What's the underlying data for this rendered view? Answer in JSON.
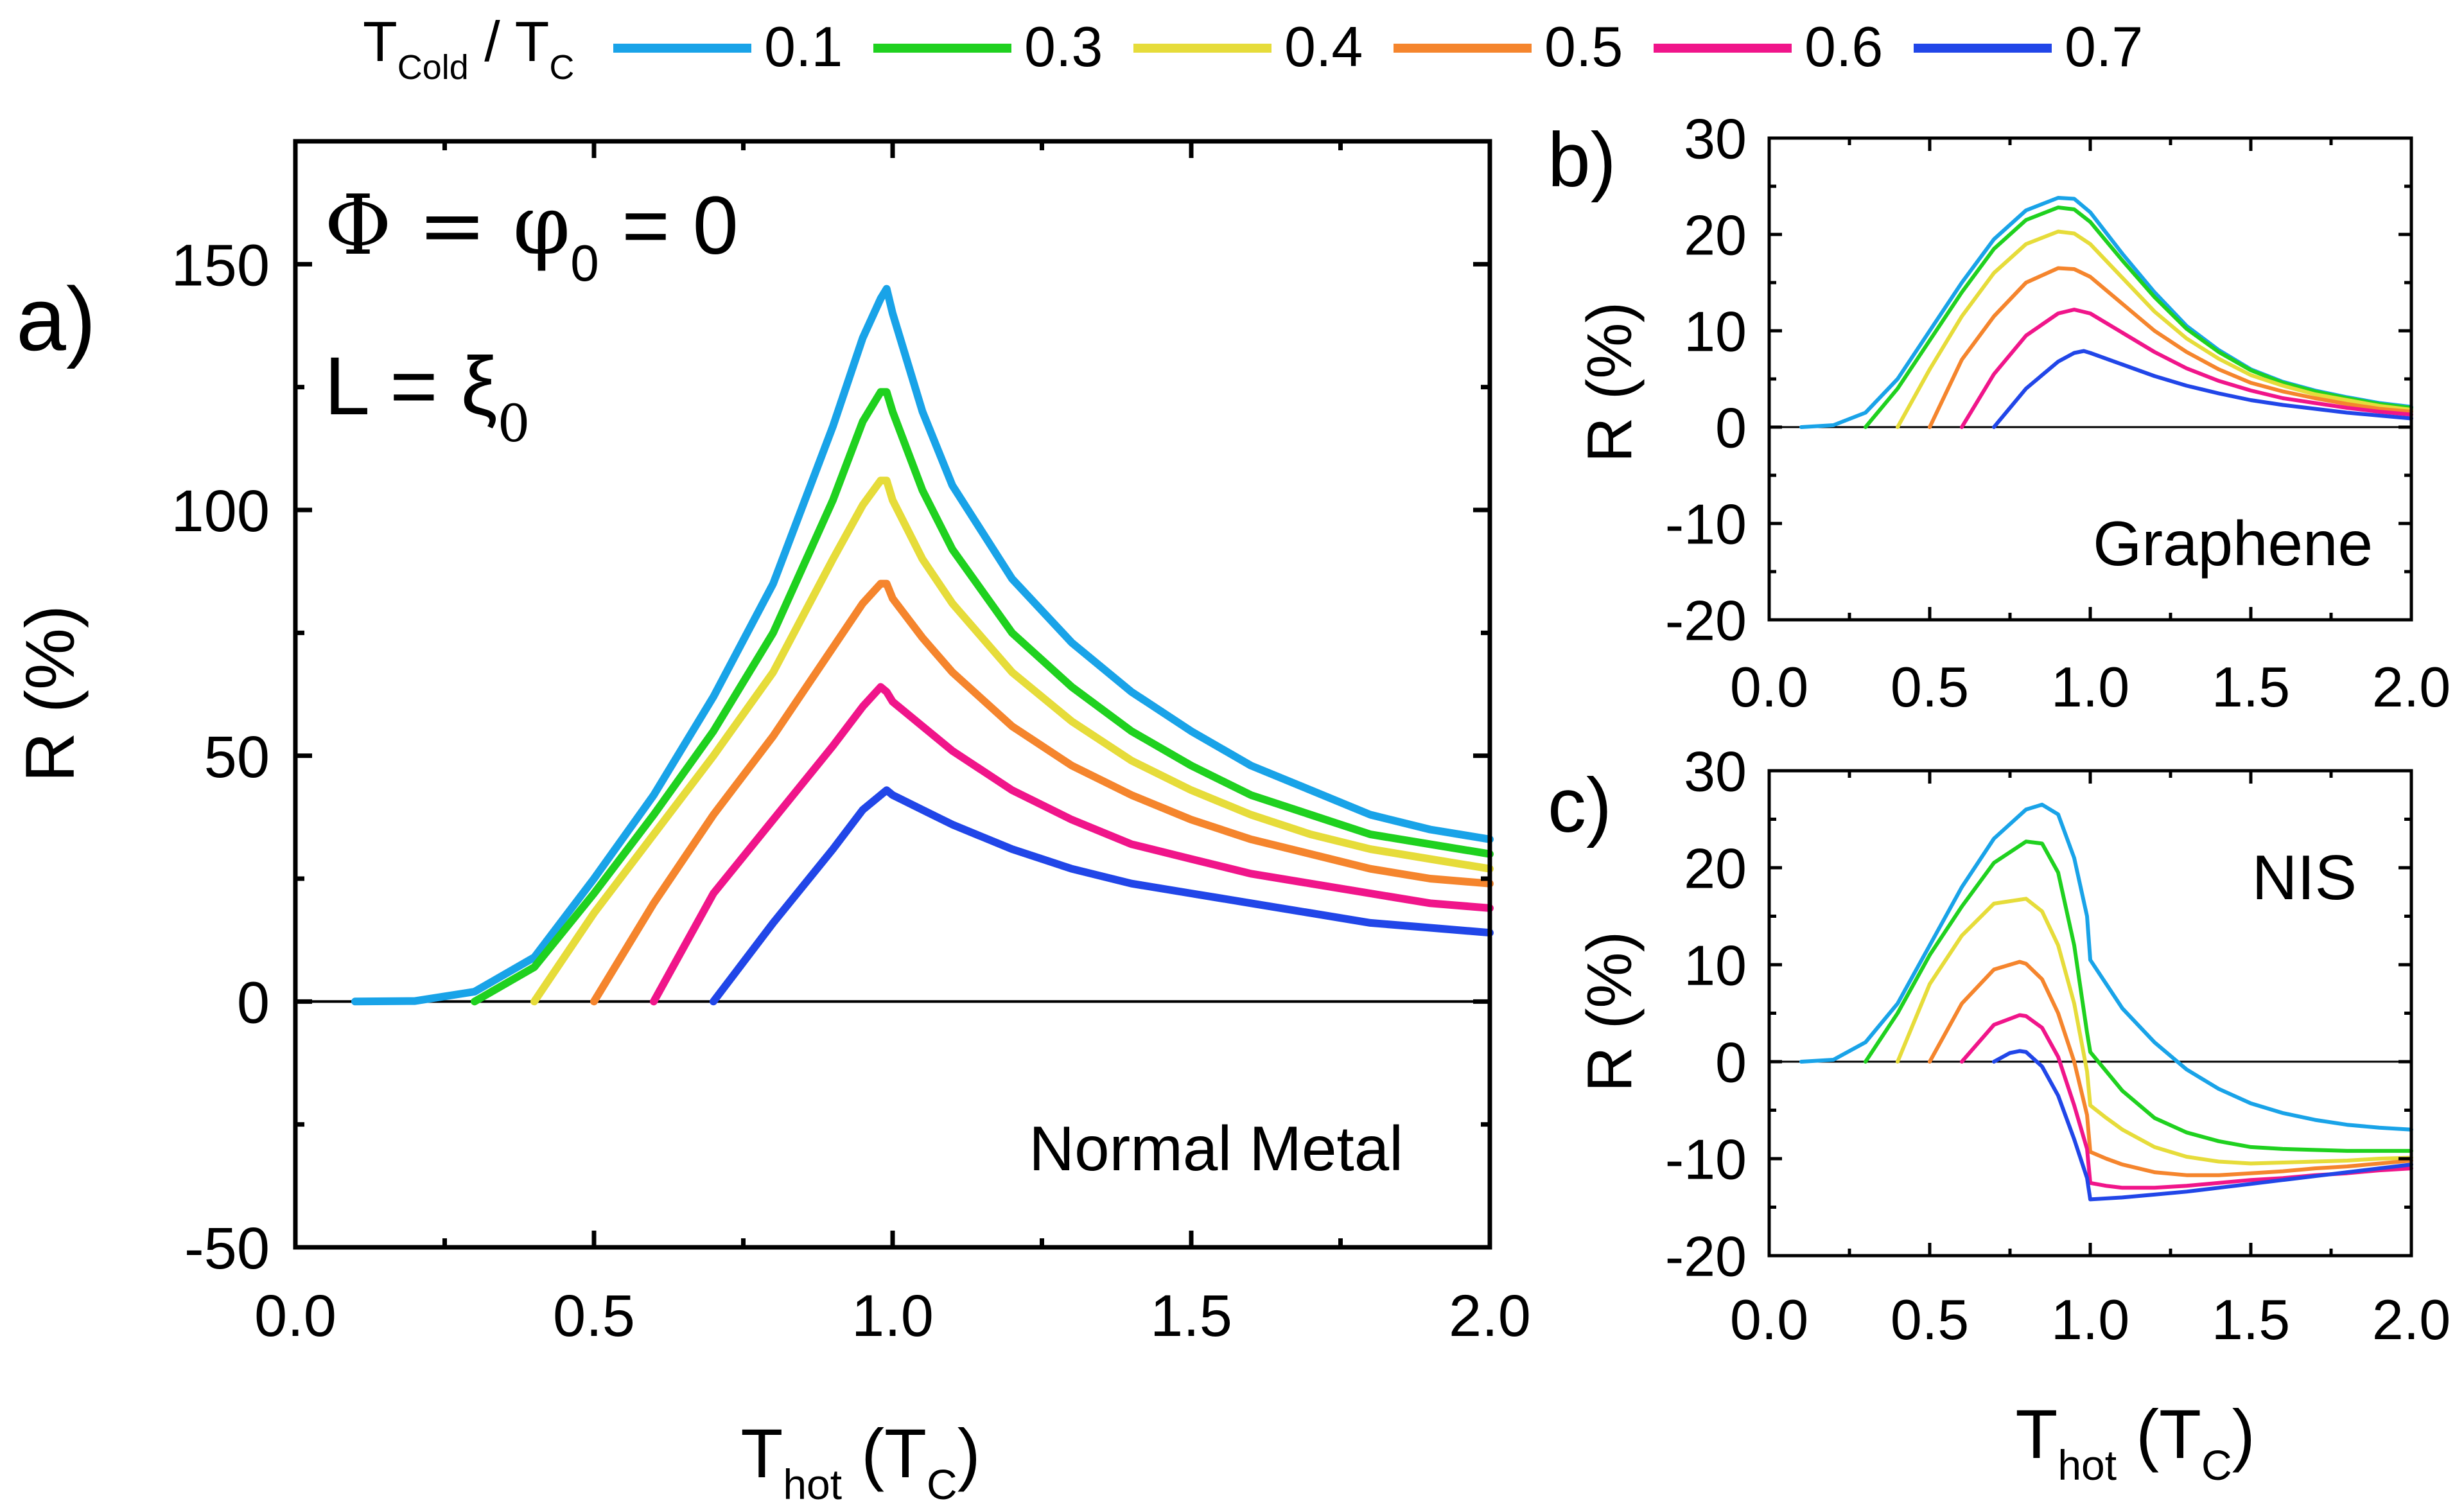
{
  "legend": {
    "title_main": "T",
    "title_sub": "Cold",
    "title_sep": " / T",
    "title_sub2": "C",
    "entries": [
      "0.1",
      "0.3",
      "0.4",
      "0.5",
      "0.6",
      "0.7"
    ],
    "colors": [
      "#19a3e8",
      "#1fd11f",
      "#e6dc3a",
      "#f5852d",
      "#f0158a",
      "#2146e8"
    ]
  },
  "chart_data": [
    {
      "id": "a",
      "type": "line",
      "panel_label": "a)",
      "title": "Normal Metal",
      "annotation_phi": {
        "lhs": "Φ = φ",
        "sub": "0",
        "rhs": " = 0"
      },
      "annotation_L": {
        "lhs": "L = ξ",
        "sub": "0"
      },
      "xlabel": {
        "main": "T",
        "sub": "hot",
        "rest": " (T",
        "sub2": "C",
        "end": ")"
      },
      "ylabel": "R (%)",
      "xlim": [
        0,
        2
      ],
      "ylim": [
        -50,
        175
      ],
      "xticks": [
        "0.0",
        "0.5",
        "1.0",
        "1.5",
        "2.0"
      ],
      "yticks": [
        "-50",
        "0",
        "50",
        "100",
        "150"
      ],
      "series": [
        {
          "name": "0.1",
          "x": [
            0.1,
            0.2,
            0.3,
            0.4,
            0.5,
            0.6,
            0.7,
            0.8,
            0.9,
            0.95,
            0.98,
            0.99,
            1.0,
            1.05,
            1.1,
            1.2,
            1.3,
            1.4,
            1.5,
            1.6,
            1.7,
            1.8,
            1.9,
            2.0
          ],
          "y": [
            0,
            0.1,
            2,
            9,
            25,
            42,
            62,
            85,
            117,
            135,
            143,
            145,
            140,
            120,
            105,
            86,
            73,
            63,
            55,
            48,
            43,
            38,
            35,
            33
          ]
        },
        {
          "name": "0.3",
          "x": [
            0.3,
            0.4,
            0.5,
            0.6,
            0.7,
            0.8,
            0.9,
            0.95,
            0.98,
            0.99,
            1.0,
            1.05,
            1.1,
            1.2,
            1.3,
            1.4,
            1.5,
            1.6,
            1.7,
            1.8,
            1.9,
            2.0
          ],
          "y": [
            0,
            7,
            22,
            38,
            55,
            75,
            102,
            118,
            124,
            124,
            120,
            104,
            92,
            75,
            64,
            55,
            48,
            42,
            38,
            34,
            32,
            30
          ]
        },
        {
          "name": "0.4",
          "x": [
            0.4,
            0.5,
            0.6,
            0.7,
            0.8,
            0.9,
            0.95,
            0.98,
            0.99,
            1.0,
            1.05,
            1.1,
            1.2,
            1.3,
            1.4,
            1.5,
            1.6,
            1.7,
            1.8,
            1.9,
            2.0
          ],
          "y": [
            0,
            18,
            34,
            50,
            67,
            90,
            101,
            106,
            106,
            102,
            90,
            81,
            67,
            57,
            49,
            43,
            38,
            34,
            31,
            29,
            27
          ]
        },
        {
          "name": "0.5",
          "x": [
            0.5,
            0.6,
            0.7,
            0.8,
            0.9,
            0.95,
            0.98,
            0.99,
            1.0,
            1.05,
            1.1,
            1.2,
            1.3,
            1.4,
            1.5,
            1.6,
            1.7,
            1.8,
            1.9,
            2.0
          ],
          "y": [
            0,
            20,
            38,
            54,
            72,
            81,
            85,
            85,
            82,
            74,
            67,
            56,
            48,
            42,
            37,
            33,
            30,
            27,
            25,
            24
          ]
        },
        {
          "name": "0.6",
          "x": [
            0.6,
            0.7,
            0.8,
            0.9,
            0.95,
            0.98,
            0.99,
            1.0,
            1.05,
            1.1,
            1.2,
            1.3,
            1.4,
            1.5,
            1.6,
            1.7,
            1.8,
            1.9,
            2.0
          ],
          "y": [
            0,
            22,
            37,
            52,
            60,
            64,
            63,
            61,
            56,
            51,
            43,
            37,
            32,
            29,
            26,
            24,
            22,
            20,
            19
          ]
        },
        {
          "name": "0.7",
          "x": [
            0.7,
            0.8,
            0.9,
            0.95,
            0.98,
            0.99,
            1.0,
            1.05,
            1.1,
            1.2,
            1.3,
            1.4,
            1.5,
            1.6,
            1.7,
            1.8,
            1.9,
            2.0
          ],
          "y": [
            0,
            16,
            31,
            39,
            42,
            43,
            42,
            39,
            36,
            31,
            27,
            24,
            22,
            20,
            18,
            16,
            15,
            14
          ]
        }
      ]
    },
    {
      "id": "b",
      "type": "line",
      "panel_label": "b)",
      "title": "Graphene",
      "xlabel": null,
      "ylabel": "R (%)",
      "xlim": [
        0,
        2
      ],
      "ylim": [
        -20,
        30
      ],
      "xticks": [
        "0.0",
        "0.5",
        "1.0",
        "1.5",
        "2.0"
      ],
      "yticks": [
        "-20",
        "-10",
        "0",
        "10",
        "20",
        "30"
      ],
      "series": [
        {
          "name": "0.1",
          "x": [
            0.1,
            0.2,
            0.3,
            0.4,
            0.5,
            0.6,
            0.7,
            0.8,
            0.9,
            0.95,
            1.0,
            1.1,
            1.2,
            1.3,
            1.4,
            1.5,
            1.6,
            1.7,
            1.8,
            1.9,
            2.0
          ],
          "y": [
            0,
            0.2,
            1.5,
            5,
            10,
            15,
            19.5,
            22.5,
            23.8,
            23.7,
            22.3,
            18,
            14,
            10.5,
            8,
            6,
            4.7,
            3.8,
            3.1,
            2.5,
            2.1
          ]
        },
        {
          "name": "0.3",
          "x": [
            0.3,
            0.4,
            0.5,
            0.6,
            0.7,
            0.8,
            0.9,
            0.95,
            1.0,
            1.1,
            1.2,
            1.3,
            1.4,
            1.5,
            1.6,
            1.7,
            1.8,
            1.9,
            2.0
          ],
          "y": [
            0,
            4,
            9,
            14,
            18.5,
            21.5,
            22.8,
            22.6,
            21.3,
            17.3,
            13.5,
            10.2,
            7.8,
            5.9,
            4.6,
            3.7,
            3,
            2.4,
            2
          ]
        },
        {
          "name": "0.4",
          "x": [
            0.4,
            0.5,
            0.6,
            0.7,
            0.8,
            0.9,
            0.95,
            1.0,
            1.1,
            1.2,
            1.3,
            1.4,
            1.5,
            1.6,
            1.7,
            1.8,
            1.9,
            2.0
          ],
          "y": [
            0,
            6,
            11.5,
            16,
            19,
            20.3,
            20.1,
            19,
            15.5,
            12,
            9.2,
            7.1,
            5.4,
            4.3,
            3.4,
            2.8,
            2.2,
            1.8
          ]
        },
        {
          "name": "0.5",
          "x": [
            0.5,
            0.6,
            0.7,
            0.8,
            0.9,
            0.95,
            1.0,
            1.1,
            1.2,
            1.3,
            1.4,
            1.5,
            1.6,
            1.7,
            1.8,
            1.9,
            2.0
          ],
          "y": [
            0,
            7,
            11.5,
            15,
            16.5,
            16.4,
            15.6,
            12.8,
            10,
            7.8,
            6,
            4.6,
            3.7,
            3,
            2.4,
            1.9,
            1.6
          ]
        },
        {
          "name": "0.6",
          "x": [
            0.6,
            0.7,
            0.8,
            0.9,
            0.95,
            1.0,
            1.1,
            1.2,
            1.3,
            1.4,
            1.5,
            1.6,
            1.7,
            1.8,
            1.9,
            2.0
          ],
          "y": [
            0,
            5.5,
            9.5,
            11.8,
            12.2,
            11.8,
            9.8,
            7.8,
            6.1,
            4.8,
            3.8,
            3,
            2.5,
            2,
            1.6,
            1.3
          ]
        },
        {
          "name": "0.7",
          "x": [
            0.7,
            0.8,
            0.9,
            0.95,
            0.98,
            1.0,
            1.1,
            1.2,
            1.3,
            1.4,
            1.5,
            1.6,
            1.7,
            1.8,
            1.9,
            2.0
          ],
          "y": [
            0,
            4,
            6.8,
            7.7,
            7.9,
            7.7,
            6.5,
            5.3,
            4.3,
            3.5,
            2.8,
            2.3,
            1.9,
            1.5,
            1.2,
            0.9
          ]
        }
      ]
    },
    {
      "id": "c",
      "type": "line",
      "panel_label": "c)",
      "title": "NIS",
      "xlabel": {
        "main": "T",
        "sub": "hot",
        "rest": " (T",
        "sub2": "C",
        "end": ")"
      },
      "ylabel": "R (%)",
      "xlim": [
        0,
        2
      ],
      "ylim": [
        -20,
        30
      ],
      "xticks": [
        "0.0",
        "0.5",
        "1.0",
        "1.5",
        "2.0"
      ],
      "yticks": [
        "-20",
        "-10",
        "0",
        "10",
        "20",
        "30"
      ],
      "series": [
        {
          "name": "0.1",
          "x": [
            0.1,
            0.2,
            0.3,
            0.4,
            0.5,
            0.6,
            0.7,
            0.8,
            0.85,
            0.9,
            0.95,
            0.99,
            1.0,
            1.05,
            1.1,
            1.2,
            1.3,
            1.4,
            1.5,
            1.6,
            1.7,
            1.8,
            1.9,
            2.0
          ],
          "y": [
            0,
            0.2,
            2,
            6,
            12,
            18,
            23,
            26,
            26.5,
            25.5,
            21,
            15,
            10.5,
            8,
            5.5,
            2,
            -0.8,
            -2.8,
            -4.3,
            -5.3,
            -6,
            -6.5,
            -6.8,
            -7
          ]
        },
        {
          "name": "0.3",
          "x": [
            0.3,
            0.4,
            0.5,
            0.6,
            0.7,
            0.8,
            0.85,
            0.9,
            0.95,
            0.99,
            1.0,
            1.05,
            1.1,
            1.2,
            1.3,
            1.4,
            1.5,
            1.6,
            1.7,
            1.8,
            1.9,
            2.0
          ],
          "y": [
            0,
            5,
            11,
            16,
            20.5,
            22.7,
            22.5,
            19.5,
            12,
            3,
            1,
            -1,
            -3,
            -5.8,
            -7.3,
            -8.2,
            -8.8,
            -9,
            -9.1,
            -9.2,
            -9.2,
            -9.2
          ]
        },
        {
          "name": "0.4",
          "x": [
            0.4,
            0.5,
            0.6,
            0.7,
            0.8,
            0.85,
            0.9,
            0.95,
            0.99,
            1.0,
            1.05,
            1.1,
            1.2,
            1.3,
            1.4,
            1.5,
            1.6,
            1.7,
            1.8,
            1.9,
            2.0
          ],
          "y": [
            0,
            8,
            13,
            16.3,
            16.8,
            15.5,
            12,
            6,
            -1,
            -4.5,
            -5.8,
            -7,
            -8.8,
            -9.8,
            -10.3,
            -10.5,
            -10.4,
            -10.3,
            -10.2,
            -10,
            -9.9
          ]
        },
        {
          "name": "0.5",
          "x": [
            0.5,
            0.6,
            0.7,
            0.78,
            0.8,
            0.85,
            0.9,
            0.95,
            0.99,
            1.0,
            1.05,
            1.1,
            1.2,
            1.3,
            1.4,
            1.5,
            1.6,
            1.7,
            1.8,
            1.9,
            2.0
          ],
          "y": [
            0,
            6,
            9.5,
            10.3,
            10.1,
            8.5,
            5,
            0,
            -5.5,
            -9.3,
            -10,
            -10.6,
            -11.4,
            -11.7,
            -11.7,
            -11.5,
            -11.3,
            -11,
            -10.8,
            -10.5,
            -10.2
          ]
        },
        {
          "name": "0.6",
          "x": [
            0.6,
            0.7,
            0.78,
            0.8,
            0.85,
            0.9,
            0.95,
            0.99,
            1.0,
            1.05,
            1.1,
            1.2,
            1.3,
            1.4,
            1.5,
            1.6,
            1.7,
            1.8,
            1.9,
            2.0
          ],
          "y": [
            0,
            3.8,
            4.8,
            4.7,
            3.5,
            0.5,
            -4.5,
            -9,
            -12.5,
            -12.8,
            -13,
            -13,
            -12.8,
            -12.5,
            -12.2,
            -12,
            -11.7,
            -11.5,
            -11.2,
            -11
          ]
        },
        {
          "name": "0.7",
          "x": [
            0.7,
            0.75,
            0.78,
            0.8,
            0.85,
            0.9,
            0.95,
            0.99,
            1.0,
            1.1,
            1.2,
            1.3,
            1.4,
            1.5,
            1.6,
            1.7,
            1.8,
            1.9,
            2.0
          ],
          "y": [
            0,
            0.9,
            1.1,
            1,
            -0.5,
            -3.5,
            -8,
            -12,
            -14.2,
            -14,
            -13.7,
            -13.4,
            -13,
            -12.6,
            -12.2,
            -11.8,
            -11.4,
            -11,
            -10.6
          ]
        }
      ]
    }
  ]
}
